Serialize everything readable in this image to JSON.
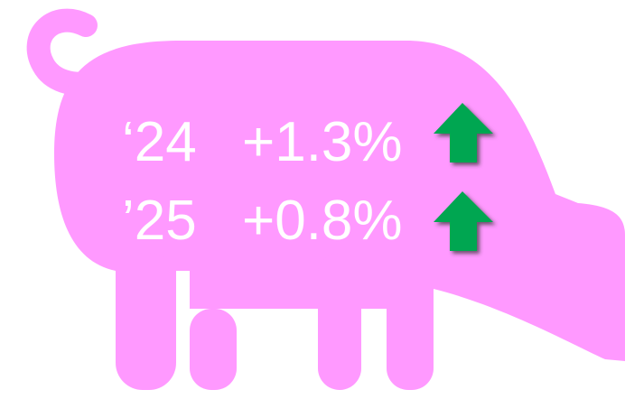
{
  "rows": [
    {
      "year": "‘24",
      "change": "+1.3%"
    },
    {
      "year": "’25",
      "change": "+0.8%"
    }
  ]
}
